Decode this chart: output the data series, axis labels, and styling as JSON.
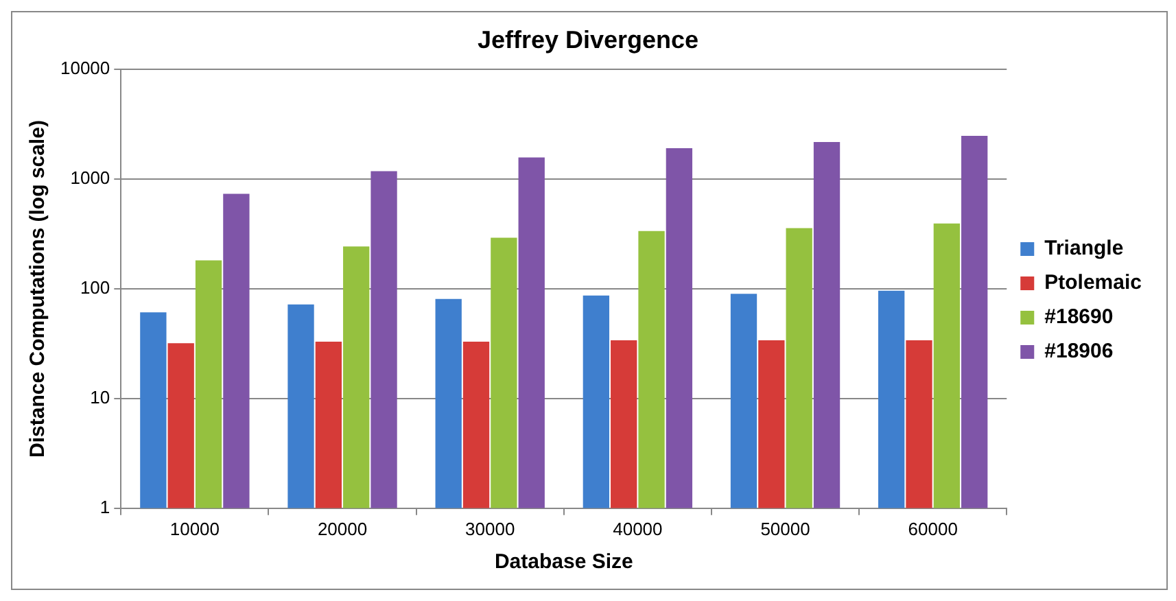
{
  "chart_data": {
    "type": "bar",
    "title": "Jeffrey Divergence",
    "xlabel": "Database Size",
    "ylabel": "Distance Computations (log scale)",
    "categories": [
      "10000",
      "20000",
      "30000",
      "40000",
      "50000",
      "60000"
    ],
    "series": [
      {
        "name": "Triangle",
        "color": "#3f7fce",
        "values": [
          61,
          72,
          81,
          87,
          90,
          96
        ]
      },
      {
        "name": "Ptolemaic",
        "color": "#d63b38",
        "values": [
          32,
          33,
          33,
          34,
          34,
          34
        ]
      },
      {
        "name": "#18690",
        "color": "#95c13f",
        "values": [
          182,
          243,
          292,
          336,
          358,
          394
        ]
      },
      {
        "name": "#18906",
        "color": "#7f55a8",
        "values": [
          736,
          1180,
          1577,
          1914,
          2177,
          2478
        ]
      }
    ],
    "log": true,
    "ylim": [
      1,
      10000
    ],
    "yticks": [
      1,
      10,
      100,
      1000,
      10000
    ],
    "grid": "y",
    "legend": "right"
  }
}
